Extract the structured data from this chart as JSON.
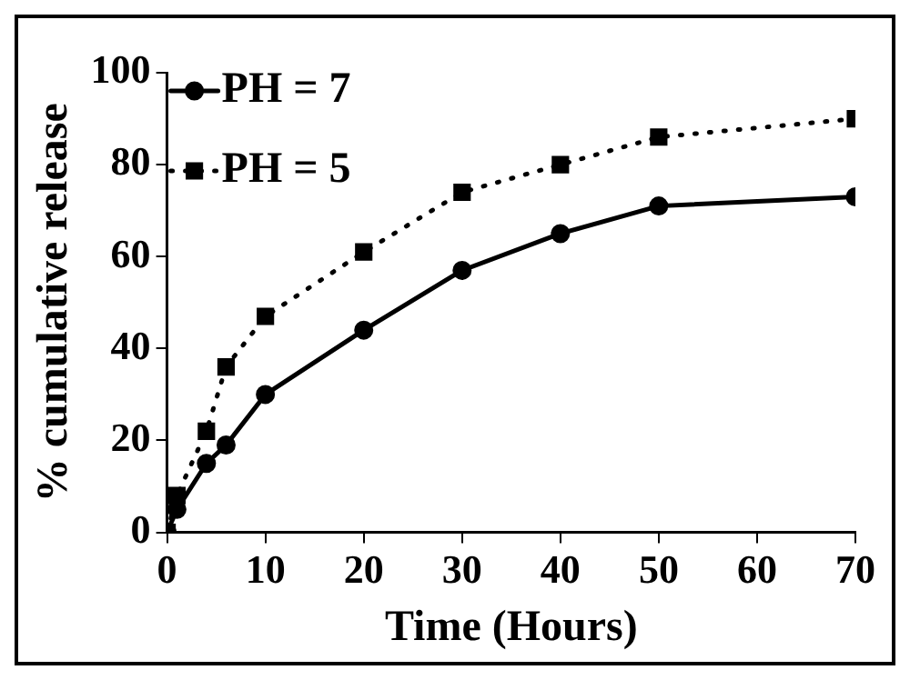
{
  "chart_data": {
    "type": "line",
    "xlabel": "Time (Hours)",
    "ylabel": "% cumulative release",
    "xlim": [
      0,
      70
    ],
    "xticks": [
      0,
      10,
      20,
      30,
      40,
      50,
      60,
      70
    ],
    "ylim": [
      0,
      100
    ],
    "yticks": [
      0,
      20,
      40,
      60,
      80,
      100
    ],
    "grid": false,
    "legend": "top left",
    "series": [
      {
        "name": "PH = 7",
        "color": "#000000",
        "marker": "circle",
        "line_style": "solid",
        "x": [
          0,
          1,
          4,
          6,
          10,
          20,
          30,
          40,
          50,
          70
        ],
        "values": [
          0,
          5,
          15,
          19,
          30,
          44,
          57,
          65,
          71,
          73
        ]
      },
      {
        "name": "PH = 5",
        "color": "#000000",
        "marker": "square",
        "line_style": "dotted",
        "x": [
          0,
          1,
          4,
          6,
          10,
          20,
          30,
          40,
          50,
          70
        ],
        "values": [
          0,
          8,
          22,
          36,
          47,
          61,
          74,
          80,
          86,
          90
        ]
      }
    ]
  }
}
